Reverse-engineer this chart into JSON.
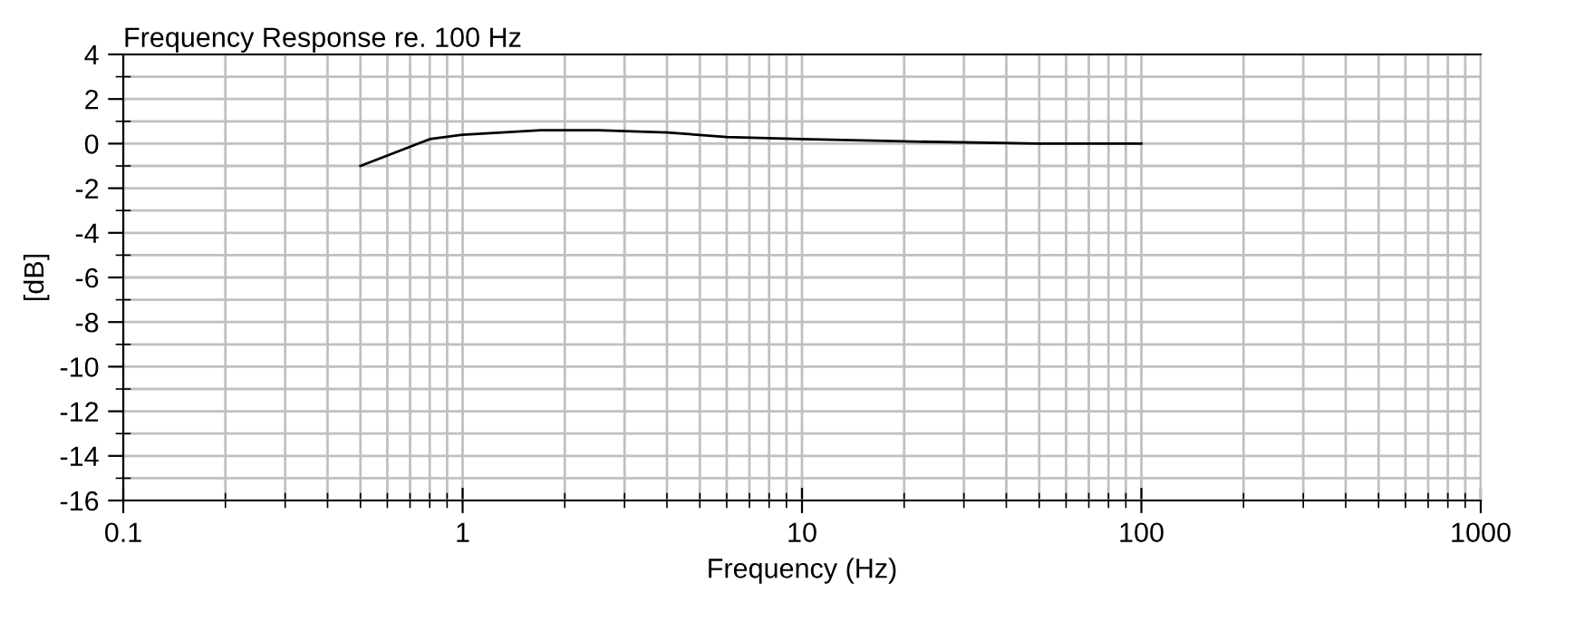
{
  "chart_data": {
    "type": "line",
    "title": "Frequency Response re. 100 Hz",
    "xlabel": "Frequency (Hz)",
    "ylabel": "[dB]",
    "log": "x",
    "grid": true,
    "marker": "none",
    "line_style": "solid",
    "xlim": [
      0.1,
      1000
    ],
    "xticks": [
      0.1,
      1,
      10,
      100,
      1000
    ],
    "ylim": [
      -16,
      4
    ],
    "yticks": [
      -16,
      -14,
      -12,
      -10,
      -8,
      -6,
      -4,
      -2,
      0,
      2,
      4
    ],
    "series": [
      {
        "color": "#000000",
        "x": [
          0.5,
          0.8,
          1.0,
          1.7,
          2.5,
          4,
          6,
          10,
          20,
          50,
          100
        ],
        "values": [
          -1,
          0.2,
          0.4,
          0.6,
          0.6,
          0.5,
          0.3,
          0.2,
          0.1,
          0.0,
          0
        ]
      }
    ]
  }
}
